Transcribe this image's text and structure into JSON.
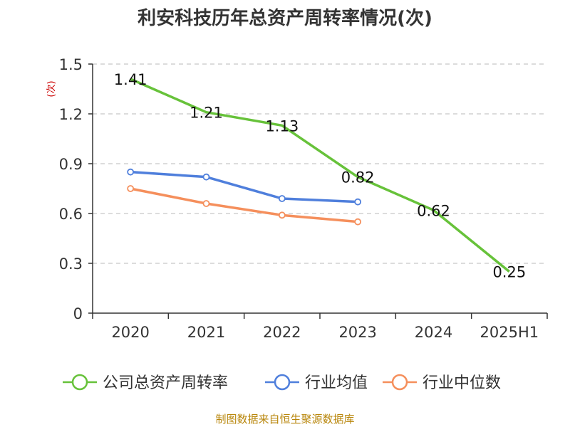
{
  "chart_data": {
    "type": "line",
    "title": "利安科技历年总资产周转率情况(次)",
    "ylabel": "(次)",
    "categories": [
      "2020",
      "2021",
      "2022",
      "2023",
      "2024",
      "2025H1"
    ],
    "ylim": [
      0,
      1.5
    ],
    "yticks": [
      "0",
      "0.3",
      "0.6",
      "0.9",
      "1.2",
      "1.5"
    ],
    "grid": true,
    "legend_position": "bottom",
    "series": [
      {
        "name": "公司总资产周转率",
        "color": "#67c23a",
        "values": [
          1.41,
          1.21,
          1.13,
          0.82,
          0.62,
          0.25
        ],
        "labels": [
          "1.41",
          "1.21",
          "1.13",
          "0.82",
          "0.62",
          "0.25"
        ],
        "markers": false
      },
      {
        "name": "行业均值",
        "color": "#4f7fdc",
        "values": [
          0.85,
          0.82,
          0.69,
          0.67,
          null,
          null
        ],
        "markers": true
      },
      {
        "name": "行业中位数",
        "color": "#f58f5c",
        "values": [
          0.75,
          0.66,
          0.59,
          0.55,
          null,
          null
        ],
        "markers": true
      }
    ]
  },
  "source": "制图数据来自恒生聚源数据库"
}
